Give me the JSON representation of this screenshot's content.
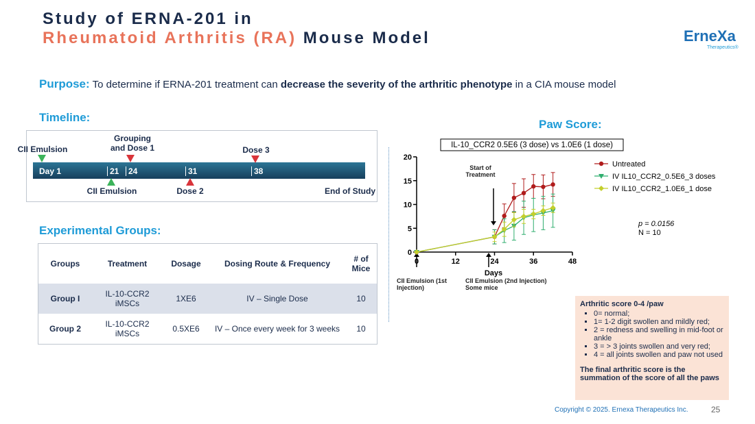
{
  "header": {
    "title_line1": "Study of ERNA-201 in",
    "title_line2_accent": "Rheumatoid Arthritis (RA)",
    "title_line2_rest": " Mouse Model"
  },
  "logo": {
    "name": "ErneXa",
    "sub": "Therapeutics®"
  },
  "purpose": {
    "label": "Purpose:",
    "parts": [
      "To determine if ERNA-201 treatment can ",
      "decrease the severity of the arthritic phenotype",
      " in a CIA mouse model"
    ]
  },
  "timeline": {
    "heading": "Timeline:",
    "days": [
      "Day 1",
      "21",
      "24",
      "31",
      "38"
    ],
    "events_top": [
      "CII Emulsion",
      "Grouping and Dose 1",
      "Dose 3"
    ],
    "events_bottom": [
      "CII Emulsion",
      "Dose 2",
      "End of Study"
    ]
  },
  "groups": {
    "heading": "Experimental Groups:",
    "header": [
      "Groups",
      "Treatment",
      "Dosage",
      "Dosing Route & Frequency",
      "# of Mice"
    ],
    "rows": [
      [
        "Group I",
        "IL-10-CCR2 iMSCs",
        "1XE6",
        "IV – Single Dose",
        "10"
      ],
      [
        "Group 2",
        "IL-10-CCR2 iMSCs",
        "0.5XE6",
        "IV – Once every week for 3 weeks",
        "10"
      ]
    ]
  },
  "paw_heading": "Paw Score:",
  "chart_data": {
    "type": "line",
    "title": "IL-10_CCR2 0.5E6 (3 dose) vs 1.0E6 (1 dose)",
    "x_label": "Days",
    "x": [
      0,
      24,
      27,
      30,
      33,
      36,
      39,
      42
    ],
    "xlim": [
      0,
      48
    ],
    "xticks": [
      0,
      12,
      24,
      36,
      48
    ],
    "ylim": [
      0,
      20
    ],
    "yticks": [
      0,
      5,
      10,
      15,
      20
    ],
    "series": [
      {
        "name": "Untreated",
        "color": "#b01c1c",
        "values": [
          0,
          3.2,
          7.6,
          11.4,
          12.4,
          13.8,
          13.7,
          14.2
        ],
        "errors": [
          0,
          1.5,
          2.5,
          3,
          3,
          2.5,
          2.5,
          2.5
        ]
      },
      {
        "name": "IV IL10_CCR2_0.5E6_3 doses",
        "color": "#2fae6e",
        "values": [
          0,
          3.2,
          4.5,
          5.5,
          7.2,
          7.8,
          8.2,
          8.7
        ],
        "errors": [
          0,
          1.5,
          2.5,
          3,
          3.5,
          3.5,
          3.5,
          3.5
        ]
      },
      {
        "name": "IV IL10_CCR2_1.0E6_1 dose",
        "color": "#c3cf2c",
        "values": [
          0,
          3.2,
          4.8,
          6.8,
          7.5,
          8.0,
          8.7,
          9.3
        ],
        "errors": [
          0,
          1,
          1.5,
          1.5,
          1.5,
          1,
          1,
          1
        ]
      }
    ],
    "annotations": {
      "treatment": "Start of Treatment",
      "p": "p = 0.0156",
      "n": "N = 10",
      "inj1": "CII Emulsion (1st Injection)",
      "inj2": "CII Emulsion (2nd Injection) Some mice"
    }
  },
  "notes": {
    "title": "Arthritic score 0-4 /paw",
    "bullets": [
      "0= normal;",
      "1= 1-2 digit swollen and mildly red;",
      "2 = redness and swelling in mid-foot or ankle",
      "3 = > 3 joints swollen and very red;",
      "4 = all joints swollen and paw not used"
    ],
    "conclusion": "The final arthritic score is the summation of the score of all the paws"
  },
  "footer": {
    "copyright": "Copyright © 2025. Ernexa Therapeutics Inc.",
    "page": "25"
  }
}
